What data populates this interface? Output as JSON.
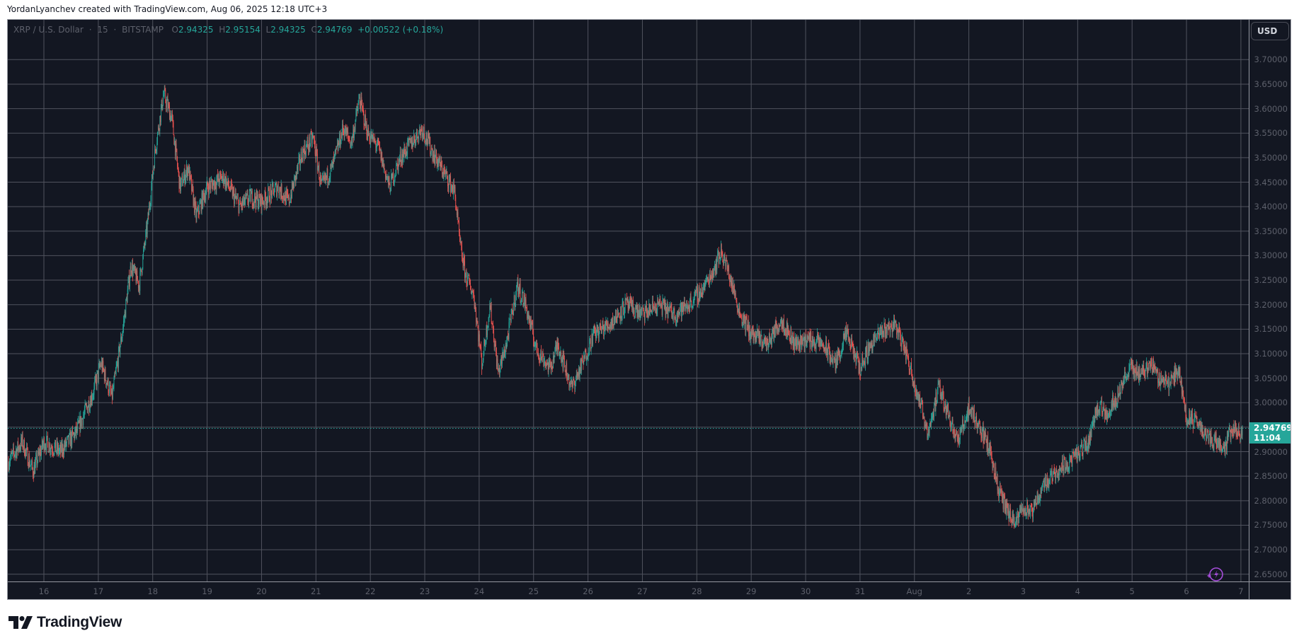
{
  "header": {
    "attribution": "YordanLyanchev created with TradingView.com, Aug 06, 2025 12:18 UTC+3"
  },
  "legend": {
    "symbol": "XRP / U.S. Dollar",
    "interval": "15",
    "exchange": "BITSTAMP",
    "open_label": "O",
    "open": "2.94325",
    "high_label": "H",
    "high": "2.95154",
    "low_label": "L",
    "low": "2.94325",
    "close_label": "C",
    "close": "2.94769",
    "change": "+0.00522 (+0.18%)"
  },
  "price_axis": {
    "currency_button": "USD",
    "last_price": "2.94769",
    "countdown": "11:04"
  },
  "logo": {
    "text": "TradingView"
  },
  "colors": {
    "background": "#131722",
    "grid": "#50535e",
    "up": "#26a69a",
    "down": "#ef5350",
    "last_price_bg": "#26a69a",
    "bolt": "#a64ddb"
  },
  "chart_data": {
    "type": "candlestick",
    "title": "XRP / U.S. Dollar · 15 · BITSTAMP",
    "xlabel": "",
    "ylabel": "USD",
    "ylim": [
      2.63,
      3.72
    ],
    "grid": true,
    "y_ticks": [
      "3.70000",
      "3.65000",
      "3.60000",
      "3.55000",
      "3.50000",
      "3.45000",
      "3.40000",
      "3.35000",
      "3.30000",
      "3.25000",
      "3.20000",
      "3.15000",
      "3.10000",
      "3.05000",
      "3.00000",
      "2.95000",
      "2.90000",
      "2.85000",
      "2.80000",
      "2.75000",
      "2.70000",
      "2.65000"
    ],
    "x_ticks": [
      "16",
      "17",
      "18",
      "19",
      "20",
      "21",
      "22",
      "23",
      "24",
      "25",
      "26",
      "27",
      "28",
      "29",
      "30",
      "31",
      "Aug",
      "2",
      "3",
      "4",
      "5",
      "6",
      "7"
    ],
    "last_price": 2.94769,
    "path_points": [
      {
        "d": -0.65,
        "p": 2.88
      },
      {
        "d": -0.4,
        "p": 2.92
      },
      {
        "d": -0.2,
        "p": 2.86
      },
      {
        "d": 0.0,
        "p": 2.92
      },
      {
        "d": 0.3,
        "p": 2.9
      },
      {
        "d": 0.6,
        "p": 2.94
      },
      {
        "d": 0.9,
        "p": 3.02
      },
      {
        "d": 1.05,
        "p": 3.08
      },
      {
        "d": 1.25,
        "p": 3.01
      },
      {
        "d": 1.45,
        "p": 3.15
      },
      {
        "d": 1.6,
        "p": 3.28
      },
      {
        "d": 1.75,
        "p": 3.24
      },
      {
        "d": 1.9,
        "p": 3.36
      },
      {
        "d": 2.05,
        "p": 3.52
      },
      {
        "d": 2.2,
        "p": 3.63
      },
      {
        "d": 2.35,
        "p": 3.58
      },
      {
        "d": 2.5,
        "p": 3.44
      },
      {
        "d": 2.65,
        "p": 3.48
      },
      {
        "d": 2.8,
        "p": 3.38
      },
      {
        "d": 3.0,
        "p": 3.44
      },
      {
        "d": 3.3,
        "p": 3.46
      },
      {
        "d": 3.6,
        "p": 3.4
      },
      {
        "d": 3.8,
        "p": 3.42
      },
      {
        "d": 4.0,
        "p": 3.41
      },
      {
        "d": 4.3,
        "p": 3.44
      },
      {
        "d": 4.5,
        "p": 3.41
      },
      {
        "d": 4.75,
        "p": 3.51
      },
      {
        "d": 4.95,
        "p": 3.54
      },
      {
        "d": 5.1,
        "p": 3.44
      },
      {
        "d": 5.3,
        "p": 3.48
      },
      {
        "d": 5.5,
        "p": 3.56
      },
      {
        "d": 5.65,
        "p": 3.53
      },
      {
        "d": 5.8,
        "p": 3.62
      },
      {
        "d": 5.95,
        "p": 3.55
      },
      {
        "d": 6.15,
        "p": 3.52
      },
      {
        "d": 6.35,
        "p": 3.44
      },
      {
        "d": 6.55,
        "p": 3.5
      },
      {
        "d": 6.75,
        "p": 3.53
      },
      {
        "d": 6.95,
        "p": 3.56
      },
      {
        "d": 7.15,
        "p": 3.51
      },
      {
        "d": 7.35,
        "p": 3.47
      },
      {
        "d": 7.55,
        "p": 3.43
      },
      {
        "d": 7.65,
        "p": 3.32
      },
      {
        "d": 7.75,
        "p": 3.26
      },
      {
        "d": 7.9,
        "p": 3.22
      },
      {
        "d": 8.05,
        "p": 3.08
      },
      {
        "d": 8.2,
        "p": 3.2
      },
      {
        "d": 8.35,
        "p": 3.06
      },
      {
        "d": 8.5,
        "p": 3.12
      },
      {
        "d": 8.7,
        "p": 3.24
      },
      {
        "d": 8.85,
        "p": 3.2
      },
      {
        "d": 9.05,
        "p": 3.11
      },
      {
        "d": 9.3,
        "p": 3.07
      },
      {
        "d": 9.45,
        "p": 3.12
      },
      {
        "d": 9.7,
        "p": 3.03
      },
      {
        "d": 9.9,
        "p": 3.08
      },
      {
        "d": 10.1,
        "p": 3.14
      },
      {
        "d": 10.4,
        "p": 3.16
      },
      {
        "d": 10.7,
        "p": 3.2
      },
      {
        "d": 11.0,
        "p": 3.18
      },
      {
        "d": 11.3,
        "p": 3.2
      },
      {
        "d": 11.6,
        "p": 3.18
      },
      {
        "d": 11.85,
        "p": 3.2
      },
      {
        "d": 12.1,
        "p": 3.23
      },
      {
        "d": 12.3,
        "p": 3.27
      },
      {
        "d": 12.45,
        "p": 3.31
      },
      {
        "d": 12.6,
        "p": 3.26
      },
      {
        "d": 12.8,
        "p": 3.18
      },
      {
        "d": 13.0,
        "p": 3.14
      },
      {
        "d": 13.3,
        "p": 3.12
      },
      {
        "d": 13.55,
        "p": 3.17
      },
      {
        "d": 13.8,
        "p": 3.12
      },
      {
        "d": 14.0,
        "p": 3.13
      },
      {
        "d": 14.3,
        "p": 3.12
      },
      {
        "d": 14.55,
        "p": 3.08
      },
      {
        "d": 14.75,
        "p": 3.14
      },
      {
        "d": 15.0,
        "p": 3.07
      },
      {
        "d": 15.2,
        "p": 3.12
      },
      {
        "d": 15.45,
        "p": 3.15
      },
      {
        "d": 15.65,
        "p": 3.16
      },
      {
        "d": 15.85,
        "p": 3.1
      },
      {
        "d": 16.05,
        "p": 3.02
      },
      {
        "d": 16.25,
        "p": 2.94
      },
      {
        "d": 16.45,
        "p": 3.03
      },
      {
        "d": 16.65,
        "p": 2.97
      },
      {
        "d": 16.8,
        "p": 2.92
      },
      {
        "d": 17.0,
        "p": 2.99
      },
      {
        "d": 17.2,
        "p": 2.95
      },
      {
        "d": 17.4,
        "p": 2.9
      },
      {
        "d": 17.55,
        "p": 2.82
      },
      {
        "d": 17.7,
        "p": 2.78
      },
      {
        "d": 17.85,
        "p": 2.75
      },
      {
        "d": 18.0,
        "p": 2.79
      },
      {
        "d": 18.15,
        "p": 2.77
      },
      {
        "d": 18.35,
        "p": 2.83
      },
      {
        "d": 18.6,
        "p": 2.86
      },
      {
        "d": 18.85,
        "p": 2.88
      },
      {
        "d": 19.05,
        "p": 2.9
      },
      {
        "d": 19.2,
        "p": 2.92
      },
      {
        "d": 19.35,
        "p": 2.99
      },
      {
        "d": 19.55,
        "p": 2.98
      },
      {
        "d": 19.75,
        "p": 3.02
      },
      {
        "d": 19.95,
        "p": 3.07
      },
      {
        "d": 20.15,
        "p": 3.06
      },
      {
        "d": 20.35,
        "p": 3.08
      },
      {
        "d": 20.5,
        "p": 3.05
      },
      {
        "d": 20.7,
        "p": 3.04
      },
      {
        "d": 20.85,
        "p": 3.07
      },
      {
        "d": 21.0,
        "p": 2.97
      },
      {
        "d": 21.2,
        "p": 2.96
      },
      {
        "d": 21.4,
        "p": 2.93
      },
      {
        "d": 21.55,
        "p": 2.92
      },
      {
        "d": 21.7,
        "p": 2.91
      },
      {
        "d": 21.85,
        "p": 2.95
      },
      {
        "d": 22.0,
        "p": 2.93
      },
      {
        "d": 22.03,
        "p": 2.94769
      }
    ]
  }
}
